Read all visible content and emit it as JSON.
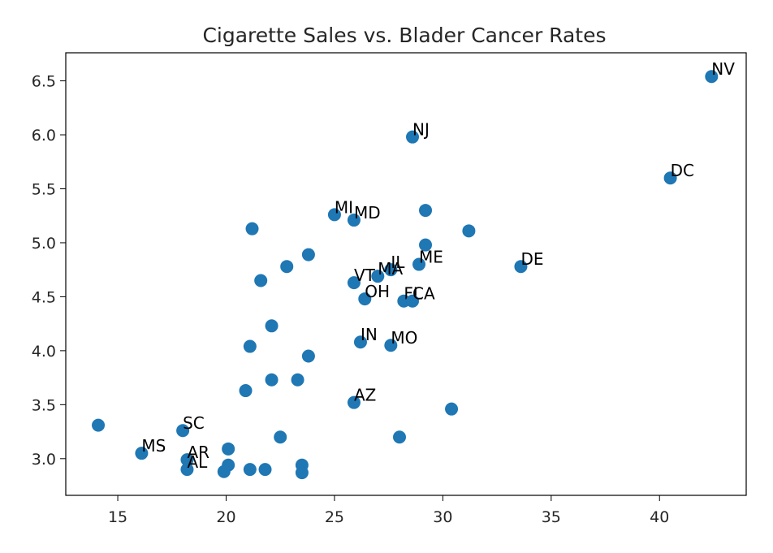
{
  "chart_data": {
    "type": "scatter",
    "title": "Cigarette Sales vs. Blader Cancer Rates",
    "xlabel": "",
    "ylabel": "",
    "xlim": [
      12.6,
      44.0
    ],
    "ylim": [
      2.66,
      6.76
    ],
    "xticks": [
      15,
      20,
      25,
      30,
      35,
      40
    ],
    "yticks": [
      3.0,
      3.5,
      4.0,
      4.5,
      5.0,
      5.5,
      6.0,
      6.5
    ],
    "ytick_labels": [
      "3.0",
      "3.5",
      "4.0",
      "4.5",
      "5.0",
      "5.5",
      "6.0",
      "6.5"
    ],
    "grid": false,
    "marker_color": "#1f77b4",
    "points": [
      {
        "x": 42.4,
        "y": 6.54,
        "label": "NV"
      },
      {
        "x": 28.6,
        "y": 5.98,
        "label": "NJ"
      },
      {
        "x": 40.5,
        "y": 5.6,
        "label": "DC"
      },
      {
        "x": 25.0,
        "y": 5.26,
        "label": "MI"
      },
      {
        "x": 25.9,
        "y": 5.21,
        "label": "MD"
      },
      {
        "x": 29.2,
        "y": 5.3,
        "label": ""
      },
      {
        "x": 21.2,
        "y": 5.13,
        "label": ""
      },
      {
        "x": 31.2,
        "y": 5.11,
        "label": ""
      },
      {
        "x": 29.2,
        "y": 4.98,
        "label": ""
      },
      {
        "x": 33.6,
        "y": 4.78,
        "label": "DE"
      },
      {
        "x": 28.9,
        "y": 4.8,
        "label": "ME"
      },
      {
        "x": 27.6,
        "y": 4.75,
        "label": "IL"
      },
      {
        "x": 27.0,
        "y": 4.69,
        "label": "MA"
      },
      {
        "x": 25.9,
        "y": 4.63,
        "label": "VT"
      },
      {
        "x": 23.8,
        "y": 4.89,
        "label": ""
      },
      {
        "x": 22.8,
        "y": 4.78,
        "label": ""
      },
      {
        "x": 21.6,
        "y": 4.65,
        "label": ""
      },
      {
        "x": 26.4,
        "y": 4.48,
        "label": "OH"
      },
      {
        "x": 28.2,
        "y": 4.46,
        "label": "FL"
      },
      {
        "x": 28.6,
        "y": 4.46,
        "label": "CA"
      },
      {
        "x": 22.1,
        "y": 4.23,
        "label": ""
      },
      {
        "x": 26.2,
        "y": 4.08,
        "label": "IN"
      },
      {
        "x": 27.6,
        "y": 4.05,
        "label": "MO"
      },
      {
        "x": 21.1,
        "y": 4.04,
        "label": ""
      },
      {
        "x": 23.8,
        "y": 3.95,
        "label": ""
      },
      {
        "x": 22.1,
        "y": 3.73,
        "label": ""
      },
      {
        "x": 23.3,
        "y": 3.73,
        "label": ""
      },
      {
        "x": 20.9,
        "y": 3.63,
        "label": ""
      },
      {
        "x": 25.9,
        "y": 3.52,
        "label": "AZ"
      },
      {
        "x": 30.4,
        "y": 3.46,
        "label": ""
      },
      {
        "x": 14.1,
        "y": 3.31,
        "label": ""
      },
      {
        "x": 18.0,
        "y": 3.26,
        "label": "SC"
      },
      {
        "x": 22.5,
        "y": 3.2,
        "label": ""
      },
      {
        "x": 28.0,
        "y": 3.2,
        "label": ""
      },
      {
        "x": 16.1,
        "y": 3.05,
        "label": "MS"
      },
      {
        "x": 20.1,
        "y": 3.09,
        "label": ""
      },
      {
        "x": 18.2,
        "y": 2.99,
        "label": "AR"
      },
      {
        "x": 18.2,
        "y": 2.9,
        "label": "AL"
      },
      {
        "x": 20.1,
        "y": 2.94,
        "label": ""
      },
      {
        "x": 19.9,
        "y": 2.88,
        "label": ""
      },
      {
        "x": 21.1,
        "y": 2.9,
        "label": ""
      },
      {
        "x": 21.8,
        "y": 2.9,
        "label": ""
      },
      {
        "x": 23.5,
        "y": 2.94,
        "label": ""
      },
      {
        "x": 23.5,
        "y": 2.87,
        "label": ""
      }
    ]
  }
}
